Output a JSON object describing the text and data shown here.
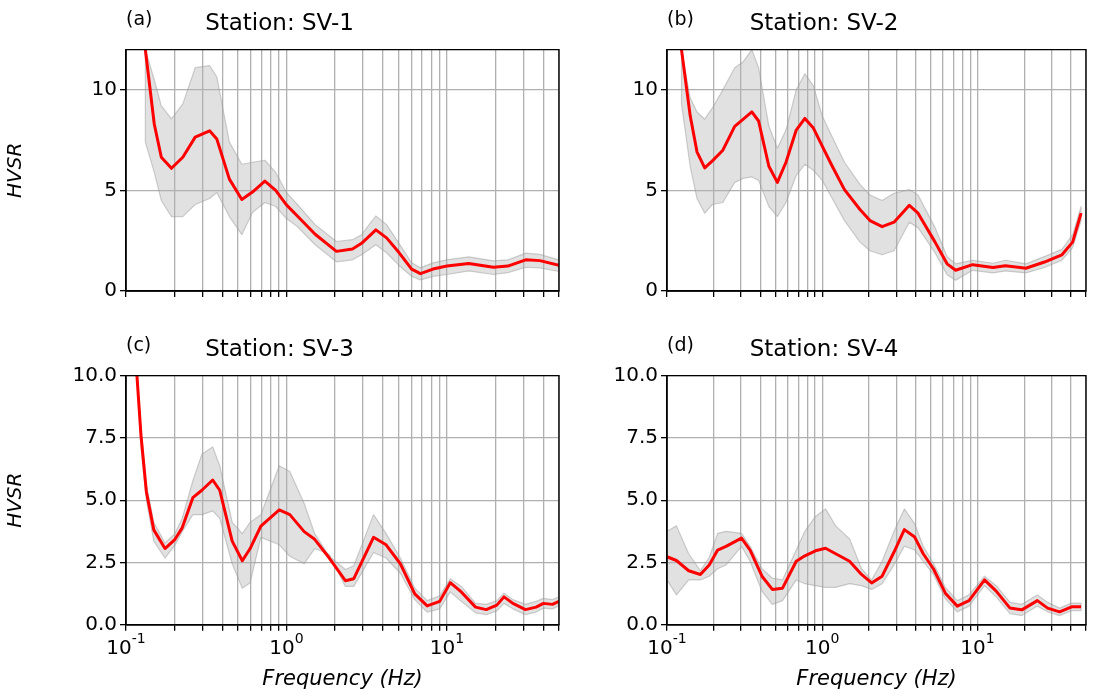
{
  "chart_data": [
    {
      "type": "line",
      "title": "Station: SV-1",
      "ylabel": "HVSR",
      "annotations": [
        "(a)"
      ],
      "log": "x",
      "grid": true,
      "legend": false,
      "tick_labels": "y",
      "xlim": [
        0.1,
        50
      ],
      "ylim": [
        0,
        12
      ],
      "xticks": [
        {
          "value": 0.1,
          "label": null
        },
        {
          "value": 0.2,
          "label": null
        },
        {
          "value": 0.3,
          "label": null
        },
        {
          "value": 0.4,
          "label": null
        },
        {
          "value": 0.5,
          "label": null
        },
        {
          "value": 0.6,
          "label": null
        },
        {
          "value": 0.7,
          "label": null
        },
        {
          "value": 0.8,
          "label": null
        },
        {
          "value": 0.9,
          "label": null
        },
        {
          "value": 1,
          "label": null
        },
        {
          "value": 2,
          "label": null
        },
        {
          "value": 3,
          "label": null
        },
        {
          "value": 4,
          "label": null
        },
        {
          "value": 5,
          "label": null
        },
        {
          "value": 6,
          "label": null
        },
        {
          "value": 7,
          "label": null
        },
        {
          "value": 8,
          "label": null
        },
        {
          "value": 9,
          "label": null
        },
        {
          "value": 10,
          "label": null
        },
        {
          "value": 20,
          "label": null
        },
        {
          "value": 30,
          "label": null
        },
        {
          "value": 40,
          "label": null
        },
        {
          "value": 50,
          "label": null
        }
      ],
      "yticks": [
        {
          "value": 0,
          "label": "0"
        },
        {
          "value": 5,
          "label": "5"
        },
        {
          "value": 10,
          "label": "10"
        }
      ],
      "x": [
        0.132,
        0.15,
        0.166,
        0.192,
        0.226,
        0.27,
        0.332,
        0.368,
        0.441,
        0.527,
        0.614,
        0.734,
        0.857,
        1.0,
        1.17,
        1.51,
        2.05,
        2.58,
        2.94,
        3.61,
        4.21,
        5.03,
        6.03,
        6.84,
        8.19,
        10,
        13.7,
        19.5,
        24,
        31,
        38,
        50
      ],
      "series": [
        {
          "color": "#ff0000",
          "values": [
            12,
            8.3,
            6.65,
            6.1,
            6.65,
            7.65,
            7.96,
            7.56,
            5.56,
            4.55,
            4.92,
            5.46,
            5.0,
            4.28,
            3.73,
            2.82,
            1.97,
            2.09,
            2.37,
            3.04,
            2.64,
            1.91,
            1.09,
            0.86,
            1.09,
            1.24,
            1.37,
            1.18,
            1.24,
            1.55,
            1.51,
            1.28
          ],
          "lower": [
            7.4,
            5.9,
            4.5,
            3.7,
            3.7,
            4.3,
            4.6,
            4.9,
            3.7,
            2.8,
            3.9,
            4.4,
            4.2,
            3.6,
            3.2,
            2.3,
            1.45,
            1.55,
            1.8,
            2.3,
            1.9,
            1.27,
            0.73,
            0.55,
            0.73,
            0.82,
            1.0,
            0.82,
            0.91,
            1.18,
            1.15,
            0.97
          ],
          "upper": [
            12,
            10.5,
            9.2,
            8.56,
            9.3,
            11.1,
            11.2,
            10.65,
            7.4,
            6.3,
            6.4,
            6.5,
            5.9,
            4.9,
            4.3,
            3.3,
            2.46,
            2.55,
            2.8,
            3.73,
            3.3,
            2.37,
            1.4,
            1.15,
            1.4,
            1.55,
            1.7,
            1.5,
            1.55,
            1.88,
            1.82,
            1.55
          ]
        }
      ]
    },
    {
      "type": "line",
      "title": "Station: SV-2",
      "annotations": [
        "(b)"
      ],
      "log": "x",
      "grid": true,
      "legend": false,
      "tick_labels": "y",
      "xlim": [
        0.1,
        50
      ],
      "ylim": [
        0,
        12
      ],
      "xticks": [
        {
          "value": 0.1,
          "label": null
        },
        {
          "value": 0.2,
          "label": null
        },
        {
          "value": 0.3,
          "label": null
        },
        {
          "value": 0.4,
          "label": null
        },
        {
          "value": 0.5,
          "label": null
        },
        {
          "value": 0.6,
          "label": null
        },
        {
          "value": 0.7,
          "label": null
        },
        {
          "value": 0.8,
          "label": null
        },
        {
          "value": 0.9,
          "label": null
        },
        {
          "value": 1,
          "label": null
        },
        {
          "value": 2,
          "label": null
        },
        {
          "value": 3,
          "label": null
        },
        {
          "value": 4,
          "label": null
        },
        {
          "value": 5,
          "label": null
        },
        {
          "value": 6,
          "label": null
        },
        {
          "value": 7,
          "label": null
        },
        {
          "value": 8,
          "label": null
        },
        {
          "value": 9,
          "label": null
        },
        {
          "value": 10,
          "label": null
        },
        {
          "value": 20,
          "label": null
        },
        {
          "value": 30,
          "label": null
        },
        {
          "value": 40,
          "label": null
        },
        {
          "value": 50,
          "label": null
        }
      ],
      "yticks": [
        {
          "value": 0,
          "label": "0"
        },
        {
          "value": 5,
          "label": "5"
        },
        {
          "value": 10,
          "label": "10"
        }
      ],
      "x": [
        0.124,
        0.141,
        0.156,
        0.175,
        0.196,
        0.229,
        0.273,
        0.31,
        0.352,
        0.389,
        0.453,
        0.514,
        0.584,
        0.68,
        0.773,
        0.877,
        1.0,
        1.16,
        1.39,
        1.75,
        2.03,
        2.43,
        2.9,
        3.64,
        4.14,
        5.33,
        6.37,
        7.23,
        9.3,
        12.6,
        15.1,
        20.5,
        27,
        35,
        41,
        46.5
      ],
      "series": [
        {
          "color": "#ff0000",
          "values": [
            12,
            8.72,
            6.92,
            6.12,
            6.47,
            7.0,
            8.18,
            8.54,
            8.9,
            8.45,
            6.2,
            5.4,
            6.4,
            8.0,
            8.58,
            8.1,
            7.2,
            6.2,
            5.04,
            4.05,
            3.5,
            3.2,
            3.42,
            4.26,
            3.87,
            2.43,
            1.35,
            1.03,
            1.31,
            1.17,
            1.26,
            1.13,
            1.44,
            1.8,
            2.43,
            3.87
          ],
          "lower": [
            9.3,
            6.2,
            4.6,
            3.87,
            4.3,
            4.4,
            5.4,
            5.6,
            5.67,
            5.5,
            4.2,
            3.7,
            4.4,
            5.75,
            6.3,
            6.0,
            5.5,
            4.6,
            3.5,
            2.43,
            2.0,
            1.8,
            2.0,
            3.42,
            3.15,
            1.9,
            0.81,
            0.54,
            1.03,
            0.9,
            1.0,
            0.9,
            1.17,
            1.53,
            2.16,
            3.5
          ],
          "upper": [
            12,
            9.6,
            8.9,
            8.54,
            9.1,
            10,
            11.1,
            11.4,
            12,
            11.1,
            8.2,
            7.1,
            8.0,
            10,
            10.8,
            10.2,
            8.7,
            7.65,
            6.4,
            5.3,
            4.77,
            4.5,
            4.86,
            5.04,
            4.77,
            3.15,
            1.71,
            1.35,
            1.53,
            1.38,
            1.53,
            1.35,
            1.71,
            2.07,
            2.8,
            4.2
          ]
        }
      ]
    },
    {
      "type": "line",
      "title": "Station: SV-3",
      "xlabel": "Frequency (Hz)",
      "ylabel": "HVSR",
      "annotations": [
        "(c)"
      ],
      "log": "x",
      "grid": true,
      "legend": false,
      "xlim": [
        0.1,
        50
      ],
      "ylim": [
        0,
        10
      ],
      "xticks": [
        {
          "value": 0.1,
          "label": "10$^{-1}$"
        },
        {
          "value": 0.2,
          "label": null
        },
        {
          "value": 0.3,
          "label": null
        },
        {
          "value": 0.4,
          "label": null
        },
        {
          "value": 0.5,
          "label": null
        },
        {
          "value": 0.6,
          "label": null
        },
        {
          "value": 0.7,
          "label": null
        },
        {
          "value": 0.8,
          "label": null
        },
        {
          "value": 0.9,
          "label": null
        },
        {
          "value": 1,
          "label": "10$^{0}$"
        },
        {
          "value": 2,
          "label": null
        },
        {
          "value": 3,
          "label": null
        },
        {
          "value": 4,
          "label": null
        },
        {
          "value": 5,
          "label": null
        },
        {
          "value": 6,
          "label": null
        },
        {
          "value": 7,
          "label": null
        },
        {
          "value": 8,
          "label": null
        },
        {
          "value": 9,
          "label": null
        },
        {
          "value": 10,
          "label": "10$^{1}$"
        },
        {
          "value": 20,
          "label": null
        },
        {
          "value": 30,
          "label": null
        },
        {
          "value": 40,
          "label": null
        },
        {
          "value": 50,
          "label": null
        }
      ],
      "yticks": [
        {
          "value": 0,
          "label": "0.0"
        },
        {
          "value": 2.5,
          "label": "2.5"
        },
        {
          "value": 5,
          "label": "5.0"
        },
        {
          "value": 7.5,
          "label": "7.5"
        },
        {
          "value": 10,
          "label": "10.0"
        }
      ],
      "x": [
        0.117,
        0.124,
        0.134,
        0.149,
        0.175,
        0.202,
        0.224,
        0.261,
        0.297,
        0.347,
        0.384,
        0.459,
        0.531,
        0.594,
        0.693,
        0.902,
        1.05,
        1.29,
        1.5,
        1.85,
        2.33,
        2.63,
        3.49,
        4.18,
        5.13,
        6.31,
        7.54,
        9.02,
        10.5,
        12.3,
        15.1,
        17.6,
        20.5,
        22.7,
        25.8,
        30.9,
        36,
        40,
        45.5,
        50
      ],
      "series": [
        {
          "color": "#ff0000",
          "values": [
            10,
            7.6,
            5.33,
            3.81,
            3.06,
            3.43,
            3.89,
            5.1,
            5.4,
            5.81,
            5.4,
            3.36,
            2.57,
            3.06,
            3.96,
            4.61,
            4.42,
            3.74,
            3.43,
            2.68,
            1.77,
            1.85,
            3.51,
            3.21,
            2.45,
            1.24,
            0.76,
            0.94,
            1.69,
            1.32,
            0.71,
            0.61,
            0.79,
            1.12,
            0.86,
            0.61,
            0.71,
            0.86,
            0.82,
            0.94
          ],
          "lower": [
            10,
            7.1,
            5.0,
            3.36,
            2.68,
            3.2,
            3.74,
            4.42,
            4.42,
            4.57,
            4.27,
            2.45,
            1.47,
            1.69,
            3.51,
            3.21,
            2.75,
            2.45,
            3.06,
            2.83,
            1.54,
            1.54,
            2.9,
            2.68,
            2.07,
            1.01,
            0.51,
            0.64,
            1.32,
            0.94,
            0.48,
            0.41,
            0.56,
            0.86,
            0.64,
            0.41,
            0.51,
            0.67,
            0.64,
            0.76
          ],
          "upper": [
            10,
            7.9,
            5.63,
            4.11,
            3.28,
            3.66,
            4.27,
            5.78,
            6.84,
            7.14,
            6.38,
            4.11,
            3.66,
            4.11,
            4.42,
            6.38,
            6.15,
            4.87,
            3.66,
            2.75,
            2.22,
            2.37,
            4.42,
            3.66,
            2.68,
            1.47,
            0.97,
            1.16,
            1.85,
            1.54,
            0.86,
            0.82,
            0.97,
            1.27,
            1.01,
            0.82,
            0.94,
            1.06,
            1.01,
            1.12
          ]
        }
      ]
    },
    {
      "type": "line",
      "title": "Station: SV-4",
      "xlabel": "Frequency (Hz)",
      "annotations": [
        "(d)"
      ],
      "log": "x",
      "grid": true,
      "legend": false,
      "xlim": [
        0.1,
        50
      ],
      "ylim": [
        0,
        10
      ],
      "xticks": [
        {
          "value": 0.1,
          "label": "10$^{-1}$"
        },
        {
          "value": 0.2,
          "label": null
        },
        {
          "value": 0.3,
          "label": null
        },
        {
          "value": 0.4,
          "label": null
        },
        {
          "value": 0.5,
          "label": null
        },
        {
          "value": 0.6,
          "label": null
        },
        {
          "value": 0.7,
          "label": null
        },
        {
          "value": 0.8,
          "label": null
        },
        {
          "value": 0.9,
          "label": null
        },
        {
          "value": 1,
          "label": "10$^{0}$"
        },
        {
          "value": 2,
          "label": null
        },
        {
          "value": 3,
          "label": null
        },
        {
          "value": 4,
          "label": null
        },
        {
          "value": 5,
          "label": null
        },
        {
          "value": 6,
          "label": null
        },
        {
          "value": 7,
          "label": null
        },
        {
          "value": 8,
          "label": null
        },
        {
          "value": 9,
          "label": null
        },
        {
          "value": 10,
          "label": "10$^{1}$"
        },
        {
          "value": 20,
          "label": null
        },
        {
          "value": 30,
          "label": null
        },
        {
          "value": 40,
          "label": null
        },
        {
          "value": 50,
          "label": null
        }
      ],
      "yticks": [
        {
          "value": 0,
          "label": "0.0"
        },
        {
          "value": 2.5,
          "label": "2.5"
        },
        {
          "value": 5,
          "label": "5.0"
        },
        {
          "value": 7.5,
          "label": "7.5"
        },
        {
          "value": 10,
          "label": "10.0"
        }
      ],
      "x": [
        0.1,
        0.115,
        0.138,
        0.164,
        0.187,
        0.212,
        0.24,
        0.302,
        0.343,
        0.409,
        0.477,
        0.555,
        0.68,
        0.773,
        0.904,
        1.05,
        1.22,
        1.5,
        1.79,
        2.08,
        2.43,
        2.9,
        3.38,
        3.94,
        4.47,
        5.2,
        6.21,
        7.41,
        8.82,
        11.1,
        13.2,
        16.2,
        19.3,
        24.3,
        28.3,
        33.8,
        40.4,
        46.5
      ],
      "series": [
        {
          "color": "#ff0000",
          "values": [
            2.73,
            2.58,
            2.17,
            2.02,
            2.4,
            3.0,
            3.15,
            3.48,
            3.0,
            1.95,
            1.42,
            1.47,
            2.55,
            2.77,
            2.97,
            3.07,
            2.85,
            2.55,
            2.02,
            1.68,
            1.95,
            2.92,
            3.82,
            3.52,
            2.85,
            2.25,
            1.27,
            0.75,
            0.97,
            1.8,
            1.35,
            0.67,
            0.6,
            0.97,
            0.67,
            0.52,
            0.72,
            0.72
          ],
          "lower": [
            1.8,
            1.2,
            1.8,
            1.8,
            1.95,
            2.25,
            2.4,
            3.15,
            2.55,
            1.35,
            0.82,
            0.97,
            1.8,
            1.65,
            1.57,
            1.5,
            1.5,
            1.65,
            1.57,
            1.42,
            1.65,
            2.4,
            3.15,
            3.0,
            2.55,
            2.02,
            1.05,
            0.52,
            0.75,
            1.57,
            1.12,
            0.45,
            0.37,
            0.75,
            0.52,
            0.37,
            0.57,
            0.57
          ],
          "upper": [
            3.75,
            3.97,
            2.85,
            2.17,
            2.7,
            3.67,
            3.75,
            3.67,
            3.15,
            2.25,
            1.87,
            1.8,
            3.0,
            3.75,
            4.35,
            4.65,
            3.97,
            3.45,
            2.25,
            1.8,
            2.55,
            3.75,
            4.65,
            4.05,
            3.15,
            2.47,
            1.5,
            0.97,
            1.2,
            1.95,
            1.57,
            0.9,
            0.82,
            1.2,
            0.9,
            0.67,
            0.87,
            0.87
          ]
        }
      ]
    }
  ]
}
